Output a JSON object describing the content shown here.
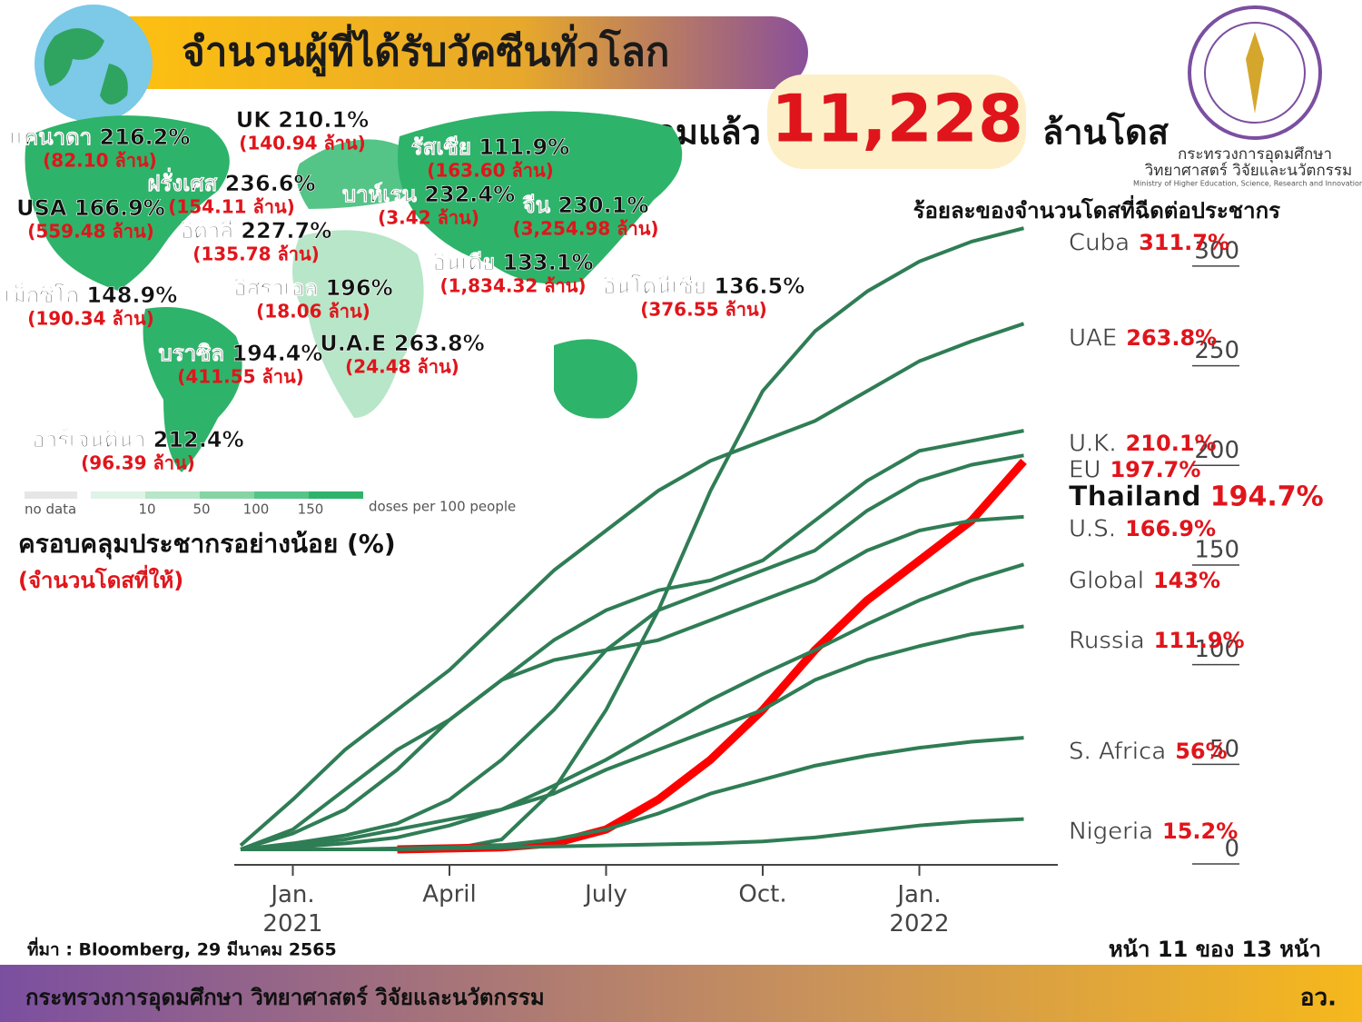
{
  "header": {
    "title": "จำนวนผู้ที่ได้รับวัคซีนทั่วโลก",
    "total_prefix": "รวมแล้ว",
    "total": "11,228",
    "total_unit": "ล้านโดส"
  },
  "logo": {
    "line1": "กระทรวงการอุดมศึกษา",
    "line2": "วิทยาศาสตร์ วิจัยและนวัตกรรม",
    "line3": "Ministry of Higher Education, Science, Research and Innovation"
  },
  "map": {
    "labels": [
      {
        "label": "แคนาดา 216.2%",
        "doses": "(82.10 ล้าน)"
      },
      {
        "label": "UK 210.1%",
        "doses": "(140.94 ล้าน)"
      },
      {
        "label": "รัสเซีย 111.9%",
        "doses": "(163.60 ล้าน)"
      },
      {
        "label": "ฝรั่งเศส 236.6%",
        "doses": "(154.11 ล้าน)"
      },
      {
        "label": "บาห์เรน 232.4%",
        "doses": "(3.42 ล้าน)"
      },
      {
        "label": "จีน 230.1%",
        "doses": "(3,254.98 ล้าน)"
      },
      {
        "label": "USA 166.9%",
        "doses": "(559.48 ล้าน)"
      },
      {
        "label": "อิตาลี 227.7%",
        "doses": "(135.78 ล้าน)"
      },
      {
        "label": "อินเดีย 133.1%",
        "doses": "(1,834.32 ล้าน)"
      },
      {
        "label": "เม็กซิโก 148.9%",
        "doses": "(190.34 ล้าน)"
      },
      {
        "label": "อิสราเอล 196%",
        "doses": "(18.06 ล้าน)"
      },
      {
        "label": "อินโดนีเซีย 136.5%",
        "doses": "(376.55 ล้าน)"
      },
      {
        "label": "บราซิล 194.4%",
        "doses": "(411.55 ล้าน)"
      },
      {
        "label": "U.A.E 263.8%",
        "doses": "(24.48 ล้าน)"
      },
      {
        "label": "อาร์เจนตินา 212.4%",
        "doses": "(96.39 ล้าน)"
      }
    ],
    "legend": {
      "no_data": "no data",
      "ticks": [
        10,
        50,
        100,
        150
      ],
      "unit": "doses per 100 people"
    },
    "caption": "ครอบคลุมประชากรอย่างน้อย (%)",
    "caption_note": "(จำนวนโดสที่ให้)"
  },
  "chart_data": {
    "type": "line",
    "title": "ร้อยละของจำนวนโดสที่ฉีดต่อประชากร",
    "x": [
      "2020-12",
      "2021-01",
      "2021-02",
      "2021-03",
      "2021-04",
      "2021-05",
      "2021-06",
      "2021-07",
      "2021-08",
      "2021-09",
      "2021-10",
      "2021-11",
      "2021-12",
      "2022-01",
      "2022-02",
      "2022-03"
    ],
    "xticks": [
      {
        "value": "2021-01",
        "label": "Jan. 2021"
      },
      {
        "value": "2021-04",
        "label": "April"
      },
      {
        "value": "2021-07",
        "label": "July"
      },
      {
        "value": "2021-10",
        "label": "Oct."
      },
      {
        "value": "2022-01",
        "label": "Jan. 2022"
      }
    ],
    "ylim": [
      0,
      315
    ],
    "yticks": [
      0,
      50,
      100,
      150,
      200,
      250,
      300
    ],
    "series": [
      {
        "name": "Cuba",
        "color": "#2f7d55",
        "values": [
          0,
          0,
          0,
          0,
          0,
          5,
          30,
          70,
          120,
          180,
          230,
          260,
          280,
          295,
          305,
          311.7
        ],
        "value_labels": [
          null,
          null,
          null,
          null,
          null,
          null,
          null,
          null,
          null,
          null,
          null,
          null,
          null,
          null,
          null,
          "311.7%"
        ]
      },
      {
        "name": "UAE",
        "color": "#2f7d55",
        "values": [
          2,
          25,
          50,
          70,
          90,
          115,
          140,
          160,
          180,
          195,
          205,
          215,
          230,
          245,
          255,
          263.8
        ],
        "value_labels": [
          null,
          null,
          null,
          null,
          null,
          null,
          null,
          null,
          null,
          null,
          null,
          null,
          null,
          null,
          null,
          "263.8%"
        ]
      },
      {
        "name": "U.K.",
        "color": "#2f7d55",
        "values": [
          0,
          10,
          30,
          50,
          65,
          85,
          105,
          120,
          130,
          135,
          145,
          165,
          185,
          200,
          205,
          210.1
        ],
        "value_labels": [
          null,
          null,
          null,
          null,
          null,
          null,
          null,
          null,
          null,
          null,
          null,
          null,
          null,
          null,
          null,
          "210.1%"
        ]
      },
      {
        "name": "EU",
        "color": "#2f7d55",
        "values": [
          0,
          3,
          7,
          13,
          25,
          45,
          70,
          100,
          120,
          130,
          140,
          150,
          170,
          185,
          193,
          197.7
        ],
        "value_labels": [
          null,
          null,
          null,
          null,
          null,
          null,
          null,
          null,
          null,
          null,
          null,
          null,
          null,
          null,
          null,
          "197.7%"
        ]
      },
      {
        "name": "Thailand",
        "color": "#ff0000",
        "values": [
          null,
          null,
          null,
          0,
          0.5,
          1,
          3,
          10,
          25,
          45,
          70,
          100,
          125,
          145,
          165,
          194.7
        ],
        "value_labels": [
          null,
          null,
          null,
          null,
          null,
          null,
          null,
          null,
          null,
          null,
          null,
          null,
          null,
          null,
          null,
          "194.7%"
        ]
      },
      {
        "name": "U.S.",
        "color": "#2f7d55",
        "values": [
          0,
          8,
          20,
          40,
          65,
          85,
          95,
          100,
          105,
          115,
          125,
          135,
          150,
          160,
          165,
          166.9
        ],
        "value_labels": [
          null,
          null,
          null,
          null,
          null,
          null,
          null,
          null,
          null,
          null,
          null,
          null,
          null,
          null,
          null,
          "166.9%"
        ]
      },
      {
        "name": "Global",
        "color": "#2f7d55",
        "values": [
          0,
          1,
          3,
          6,
          12,
          20,
          32,
          45,
          60,
          75,
          88,
          100,
          113,
          125,
          135,
          143
        ],
        "value_labels": [
          null,
          null,
          null,
          null,
          null,
          null,
          null,
          null,
          null,
          null,
          null,
          null,
          null,
          null,
          null,
          "143%"
        ]
      },
      {
        "name": "Russia",
        "color": "#2f7d55",
        "values": [
          0,
          2,
          5,
          10,
          15,
          20,
          28,
          40,
          50,
          60,
          70,
          85,
          95,
          102,
          108,
          111.9
        ],
        "value_labels": [
          null,
          null,
          null,
          null,
          null,
          null,
          null,
          null,
          null,
          null,
          null,
          null,
          null,
          null,
          null,
          "111.9%"
        ]
      },
      {
        "name": "S. Africa",
        "color": "#2f7d55",
        "values": [
          0,
          0,
          0,
          0.5,
          1,
          2,
          5,
          10,
          18,
          28,
          35,
          42,
          47,
          51,
          54,
          56
        ],
        "value_labels": [
          null,
          null,
          null,
          null,
          null,
          null,
          null,
          null,
          null,
          null,
          null,
          null,
          null,
          null,
          null,
          "56%"
        ]
      },
      {
        "name": "Nigeria",
        "color": "#2f7d55",
        "values": [
          0,
          0,
          0,
          0,
          0.5,
          1,
          1.5,
          2,
          2.5,
          3,
          4,
          6,
          9,
          12,
          14,
          15.2
        ],
        "value_labels": [
          null,
          null,
          null,
          null,
          null,
          null,
          null,
          null,
          null,
          null,
          null,
          null,
          null,
          null,
          null,
          "15.2%"
        ]
      }
    ]
  },
  "footer": {
    "source": "ที่มา : Bloomberg, 29 มีนาคม 2565",
    "page": "หน้า 11 ของ 13 หน้า",
    "ministry": "กระทรวงการอุดมศึกษา วิทยาศาสตร์ วิจัยและนวัตกรรม",
    "abbr": "อว."
  }
}
